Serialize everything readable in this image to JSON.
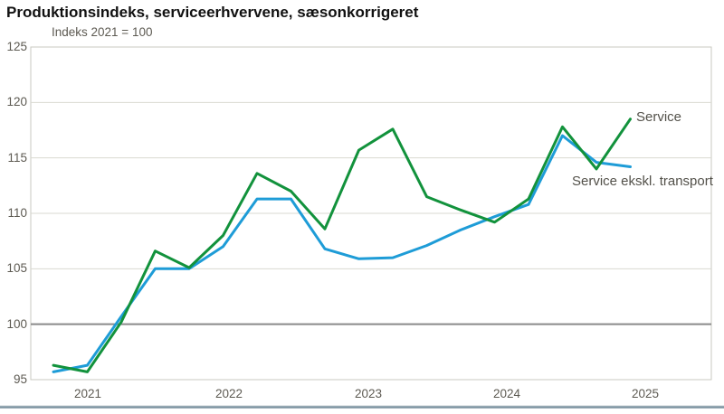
{
  "chart_data": {
    "type": "line",
    "title": "Produktionsindeks, serviceerhvervene, sæsonkorrigeret",
    "unit_label": "Indeks 2021 = 100",
    "x": [
      "2020Q4",
      "2021Q1",
      "2021Q2",
      "2021Q3",
      "2021Q4",
      "2022Q1",
      "2022Q2",
      "2022Q3",
      "2022Q4",
      "2023Q1",
      "2023Q2",
      "2023Q3",
      "2023Q4",
      "2024Q1",
      "2024Q2",
      "2024Q3",
      "2024Q4",
      "2025Q1"
    ],
    "series": [
      {
        "name": "Service",
        "color": "#12923c",
        "values": [
          96.3,
          95.7,
          100.2,
          106.6,
          105.1,
          108.0,
          113.6,
          112.0,
          108.6,
          115.7,
          117.6,
          111.5,
          110.3,
          109.2,
          111.3,
          117.8,
          114.0,
          118.5
        ]
      },
      {
        "name": "Service ekskl. transport",
        "color": "#1e9cd7",
        "values": [
          95.7,
          96.3,
          100.7,
          105.0,
          105.0,
          107.0,
          111.3,
          111.3,
          106.8,
          105.9,
          106.0,
          107.1,
          108.5,
          109.7,
          110.8,
          117.0,
          114.6,
          114.2
        ]
      }
    ],
    "ylim": [
      95,
      125
    ],
    "yticks": [
      95,
      100,
      105,
      110,
      115,
      120,
      125
    ],
    "xticklabels": [
      "2021",
      "2022",
      "2023",
      "2024",
      "2025"
    ],
    "baseline_value": 100,
    "grid": "horizontal",
    "legend_position": "inline-end-of-line-labels",
    "colors": {
      "grid_light": "#d9d9d1",
      "grid_baseline": "#8a8a8a",
      "plot_border": "#c9c9c1",
      "tick_text": "#5d5a52",
      "series_label_text": "#53514a"
    }
  }
}
